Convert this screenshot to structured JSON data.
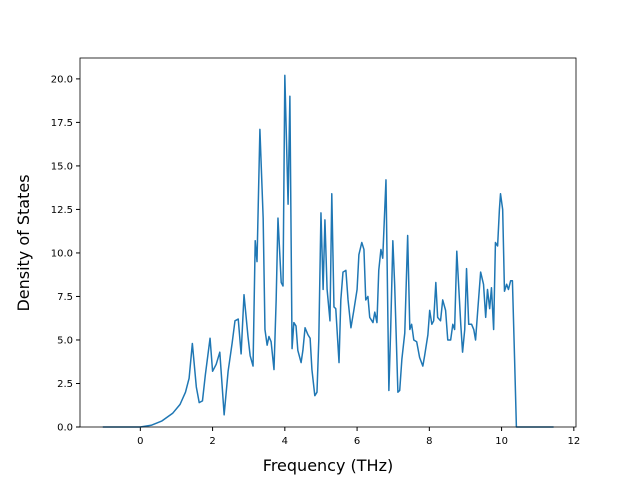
{
  "chart_data": {
    "type": "line",
    "xlabel": "Frequency (THz)",
    "ylabel": "Density of States",
    "x": [
      -1.04,
      0,
      0.3,
      0.6,
      0.9,
      1.1,
      1.25,
      1.35,
      1.44,
      1.55,
      1.63,
      1.72,
      1.8,
      1.93,
      2.0,
      2.1,
      2.2,
      2.32,
      2.43,
      2.54,
      2.62,
      2.71,
      2.79,
      2.87,
      2.98,
      3.04,
      3.12,
      3.18,
      3.23,
      3.31,
      3.4,
      3.45,
      3.51,
      3.56,
      3.62,
      3.7,
      3.76,
      3.81,
      3.9,
      3.95,
      4.0,
      4.09,
      4.14,
      4.2,
      4.25,
      4.31,
      4.36,
      4.45,
      4.5,
      4.56,
      4.64,
      4.7,
      4.75,
      4.83,
      4.89,
      4.94,
      5.0,
      5.06,
      5.11,
      5.17,
      5.25,
      5.3,
      5.36,
      5.41,
      5.5,
      5.55,
      5.61,
      5.69,
      5.75,
      5.83,
      5.91,
      6.0,
      6.05,
      6.13,
      6.19,
      6.24,
      6.3,
      6.35,
      6.44,
      6.49,
      6.55,
      6.6,
      6.66,
      6.71,
      6.8,
      6.88,
      6.93,
      6.99,
      7.04,
      7.13,
      7.18,
      7.24,
      7.32,
      7.4,
      7.46,
      7.51,
      7.57,
      7.65,
      7.73,
      7.82,
      7.87,
      7.96,
      8.01,
      8.07,
      8.12,
      8.18,
      8.23,
      8.31,
      8.37,
      8.45,
      8.51,
      8.59,
      8.65,
      8.7,
      8.76,
      8.81,
      8.87,
      8.92,
      8.98,
      9.03,
      9.09,
      9.17,
      9.23,
      9.28,
      9.34,
      9.42,
      9.5,
      9.56,
      9.61,
      9.67,
      9.72,
      9.78,
      9.83,
      9.89,
      9.94,
      9.97,
      10.03,
      10.08,
      10.14,
      10.19,
      10.25,
      10.3,
      10.36,
      10.41,
      11.44
    ],
    "series": [
      {
        "color": "#1f77b4",
        "values": [
          0,
          0,
          0.1,
          0.35,
          0.8,
          1.3,
          2.0,
          2.8,
          4.8,
          2.3,
          1.4,
          1.5,
          3.0,
          5.1,
          3.2,
          3.6,
          4.3,
          0.7,
          3.2,
          4.8,
          6.1,
          6.2,
          4.2,
          7.6,
          5.2,
          4.1,
          3.5,
          10.7,
          9.5,
          17.1,
          12.0,
          5.6,
          4.7,
          5.2,
          4.9,
          3.3,
          7.3,
          12.0,
          8.3,
          8.1,
          20.2,
          12.8,
          19.0,
          4.5,
          6.0,
          5.8,
          4.4,
          3.7,
          4.4,
          5.7,
          5.3,
          5.1,
          3.3,
          1.8,
          2.0,
          5.0,
          12.3,
          7.9,
          11.9,
          7.9,
          6.1,
          13.4,
          6.9,
          6.8,
          3.7,
          7.3,
          8.9,
          9.0,
          7.3,
          5.7,
          6.7,
          7.9,
          9.9,
          10.6,
          10.2,
          7.3,
          7.5,
          6.3,
          6.0,
          6.6,
          6.0,
          9.0,
          10.2,
          9.7,
          14.2,
          2.1,
          5.6,
          10.7,
          8.2,
          2.0,
          2.1,
          3.9,
          5.4,
          11.0,
          5.6,
          5.9,
          5.0,
          4.9,
          4.0,
          3.5,
          4.1,
          5.3,
          6.7,
          5.9,
          6.1,
          8.3,
          6.3,
          6.1,
          7.3,
          6.7,
          5.0,
          5.0,
          5.9,
          5.6,
          10.1,
          8.2,
          5.9,
          4.3,
          5.6,
          9.1,
          5.9,
          5.9,
          5.6,
          5.0,
          6.7,
          8.9,
          8.2,
          6.3,
          7.9,
          6.8,
          8.0,
          5.6,
          10.6,
          10.4,
          12.5,
          13.4,
          12.5,
          7.8,
          8.2,
          7.9,
          8.4,
          8.4,
          3.9,
          0,
          0
        ]
      }
    ],
    "xlim": [
      -1.67,
      12.06
    ],
    "ylim": [
      0,
      21.2
    ],
    "xticks": [
      0,
      2,
      4,
      6,
      8,
      10,
      12
    ],
    "yticks": [
      {
        "value": 0,
        "label": "0.0"
      },
      {
        "value": 2.5,
        "label": "2.5"
      },
      {
        "value": 5,
        "label": "5.0"
      },
      {
        "value": 7.5,
        "label": "7.5"
      },
      {
        "value": 10,
        "label": "10.0"
      },
      {
        "value": 12.5,
        "label": "12.5"
      },
      {
        "value": 15,
        "label": "15.0"
      },
      {
        "value": 17.5,
        "label": "17.5"
      },
      {
        "value": 20,
        "label": "20.0"
      }
    ],
    "grid": false
  }
}
